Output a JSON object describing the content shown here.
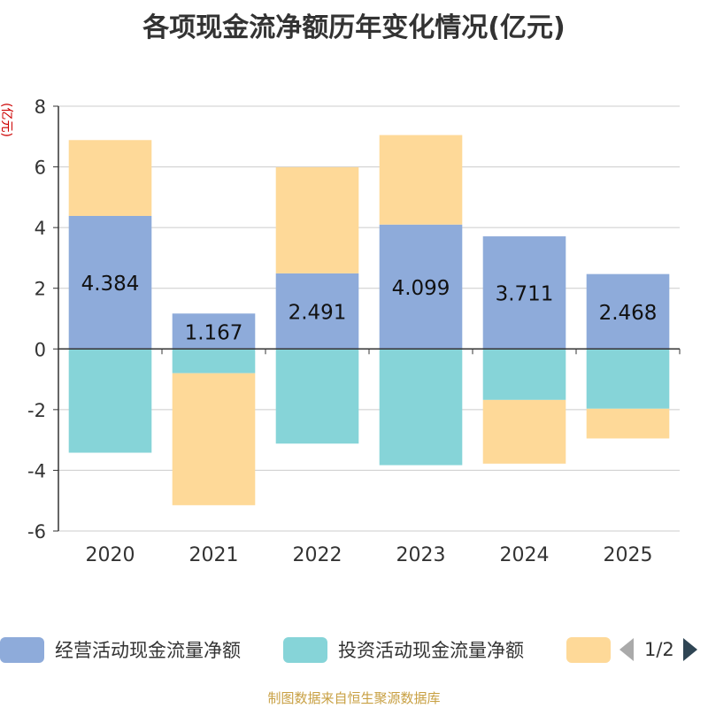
{
  "chart_data": {
    "type": "bar",
    "stacked": true,
    "title": "各项现金流净额历年变化情况(亿元)",
    "ylabel": "(亿元)",
    "categories": [
      "2020",
      "2021",
      "2022",
      "2023",
      "2024",
      "2025"
    ],
    "ylim": [
      -6,
      8
    ],
    "yticks": [
      -6,
      -4,
      -2,
      0,
      2,
      4,
      6,
      8
    ],
    "series": [
      {
        "name": "经营活动现金流量净额",
        "color": "#8eabda",
        "values": [
          4.384,
          1.167,
          2.491,
          4.099,
          3.711,
          2.468
        ],
        "labels": [
          "4.384",
          "1.167",
          "2.491",
          "4.099",
          "3.711",
          "2.468"
        ]
      },
      {
        "name": "投资活动现金流量净额",
        "color": "#86d4d8",
        "values": [
          -3.42,
          -0.8,
          -3.12,
          -3.83,
          -1.68,
          -1.97
        ]
      },
      {
        "name": "",
        "color": "#fed998",
        "values": [
          2.5,
          -4.35,
          3.5,
          2.95,
          -2.1,
          -0.98
        ]
      }
    ],
    "legend": {
      "position": "bottom",
      "page": "1/2"
    },
    "source": "制图数据来自恒生聚源数据库"
  }
}
